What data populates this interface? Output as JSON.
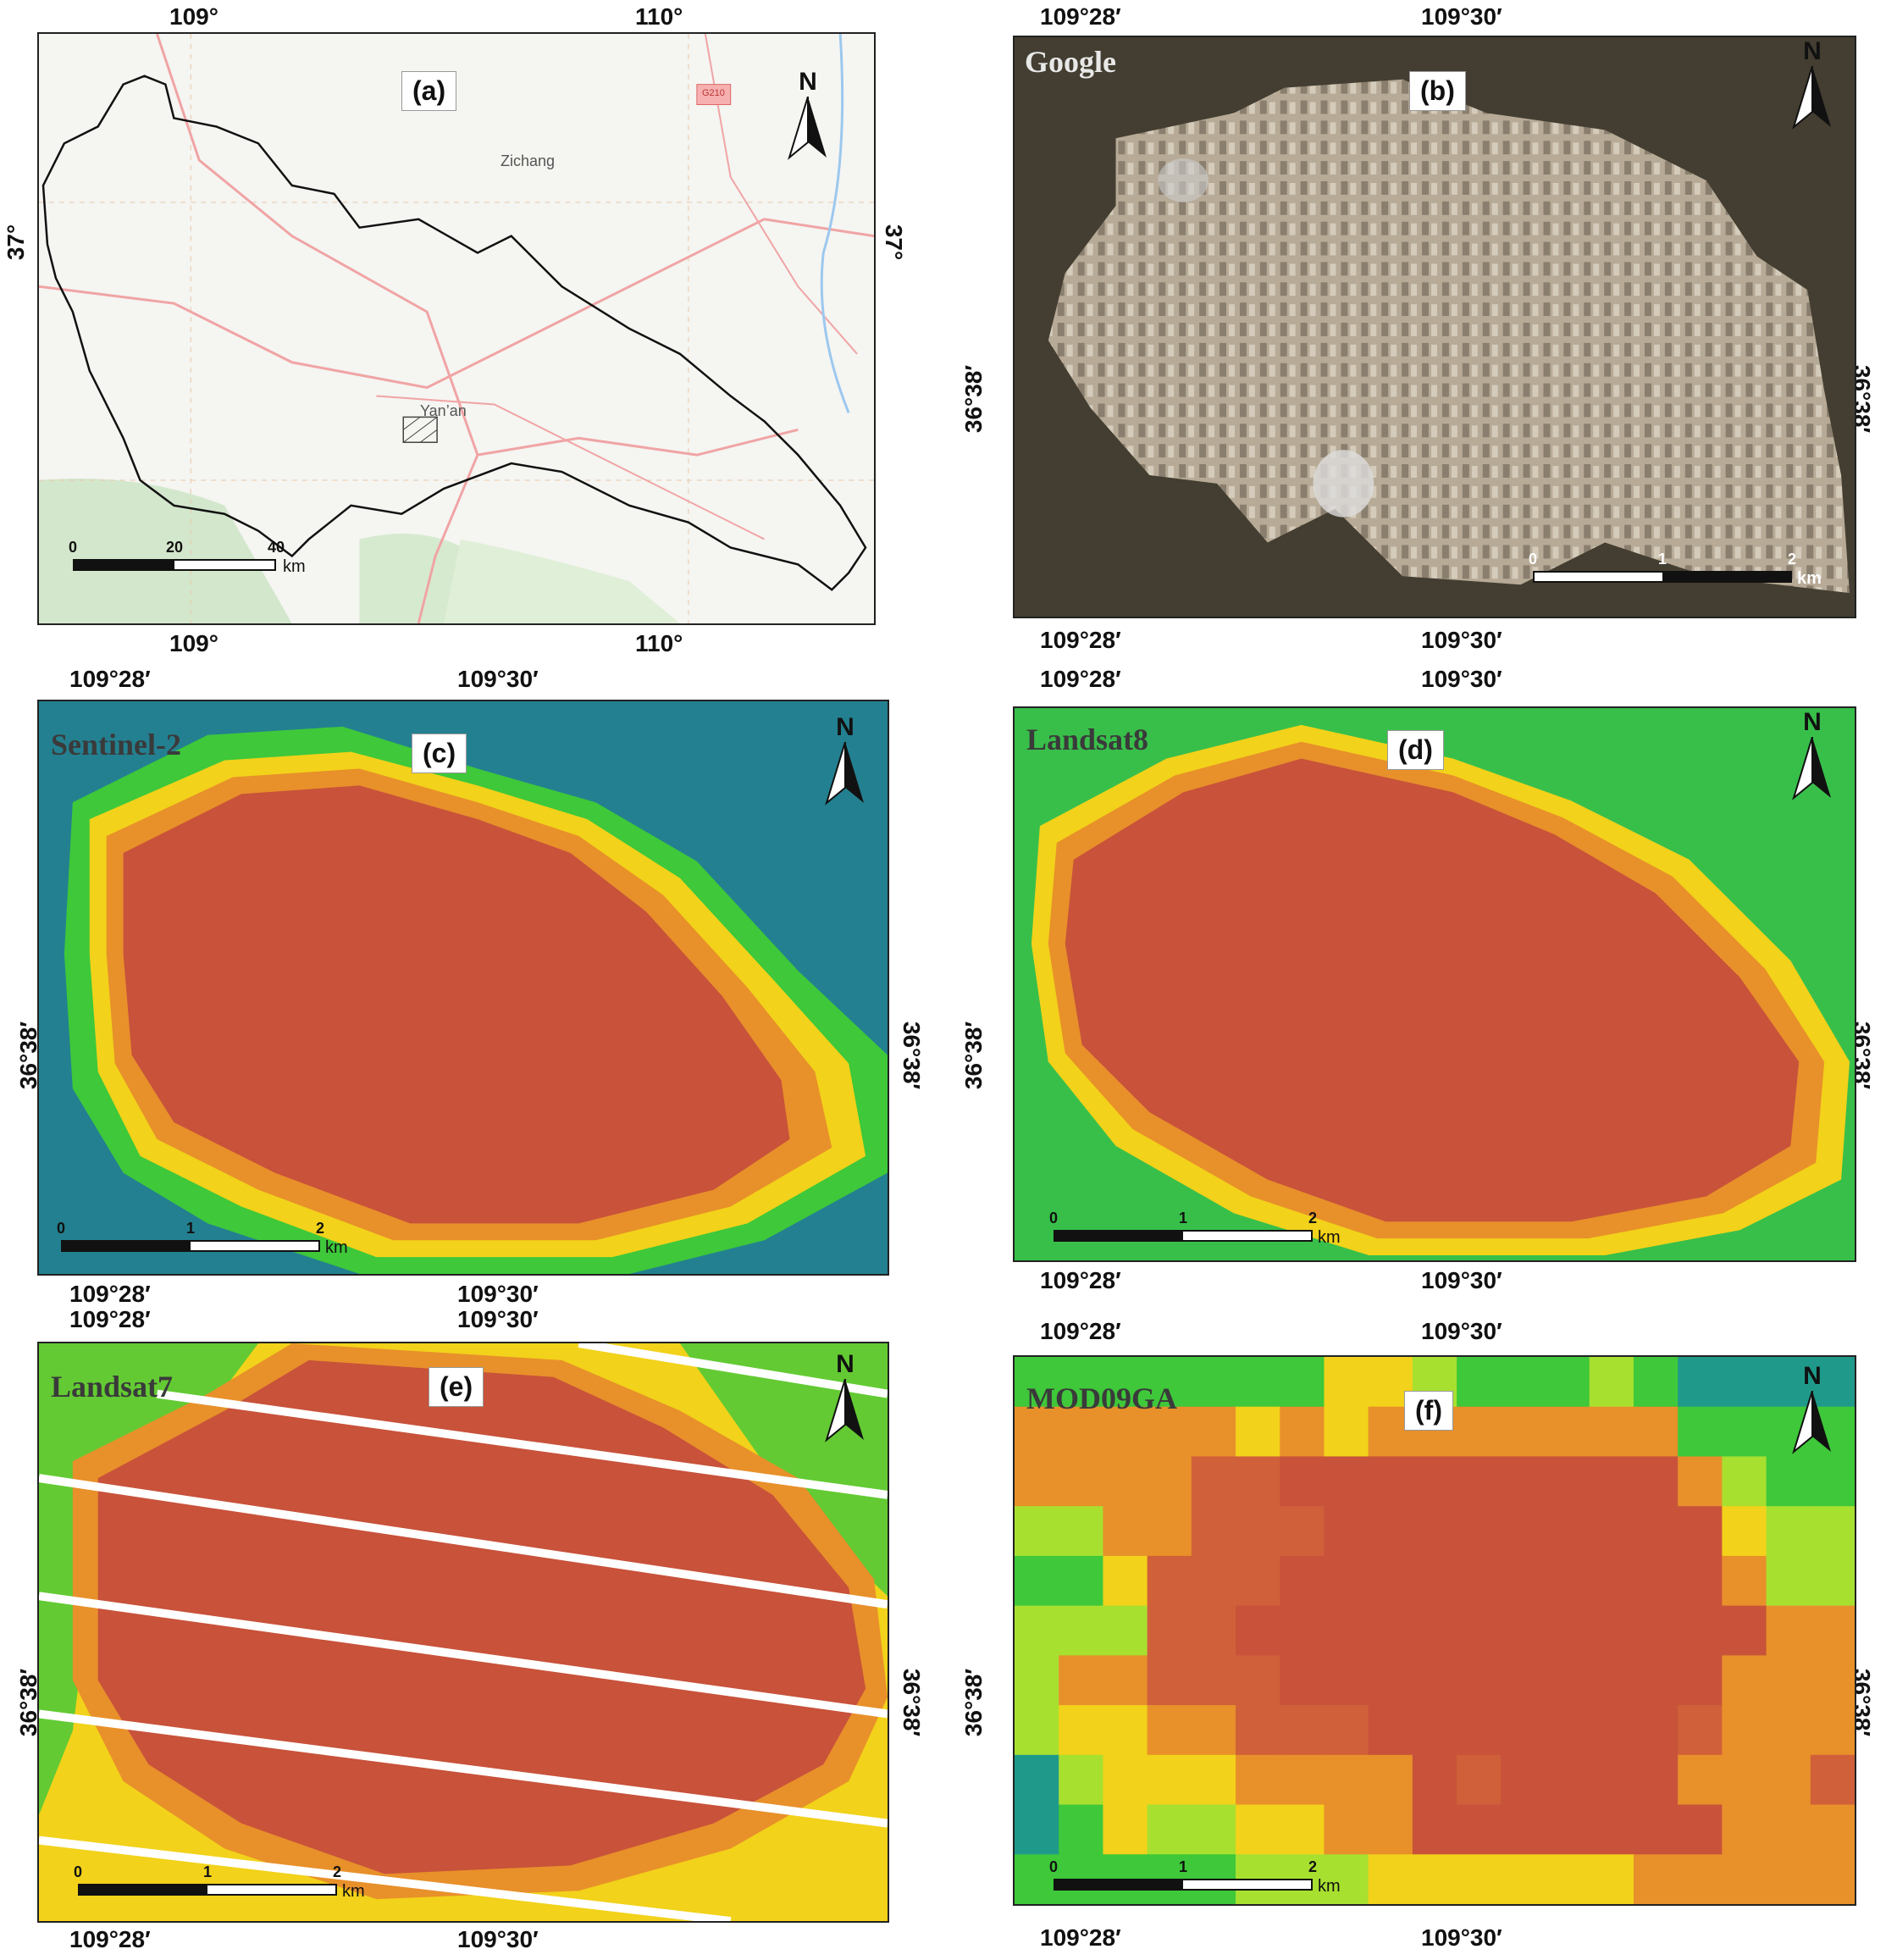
{
  "panels": {
    "a": {
      "label": "(a)",
      "top_lon": [
        "109°",
        "110°"
      ],
      "bottom_lon": [
        "109°",
        "110°"
      ],
      "left_lat": "37°",
      "right_lat": "37°",
      "places": {
        "zichang": "Zichang",
        "yanan": "Yan’an",
        "road": "G210"
      },
      "scale": {
        "ticks": [
          "0",
          "20",
          "40"
        ],
        "unit": "km"
      },
      "north": "N"
    },
    "b": {
      "label": "(b)",
      "source": "Google",
      "top_lon": [
        "109°28′",
        "109°30′"
      ],
      "bottom_lon": [
        "109°28′",
        "109°30′"
      ],
      "lat": "36°38′",
      "scale": {
        "ticks": [
          "0",
          "1",
          "2"
        ],
        "unit": "km"
      },
      "north": "N"
    },
    "c": {
      "label": "(c)",
      "source": "Sentinel-2",
      "top_lon": [
        "109°28′",
        "109°30′"
      ],
      "bottom_lon": [
        "109°28′",
        "109°30′"
      ],
      "lat": "36°38′",
      "scale": {
        "ticks": [
          "0",
          "1",
          "2"
        ],
        "unit": "km"
      },
      "north": "N"
    },
    "d": {
      "label": "(d)",
      "source": "Landsat8",
      "top_lon": [
        "109°28′",
        "109°30′"
      ],
      "bottom_lon": [
        "109°28′",
        "109°30′"
      ],
      "lat": "36°38′",
      "scale": {
        "ticks": [
          "0",
          "1",
          "2"
        ],
        "unit": "km"
      },
      "north": "N"
    },
    "e": {
      "label": "(e)",
      "source": "Landsat7",
      "top_lon": [
        "109°28′",
        "109°30′"
      ],
      "bottom_lon": [
        "109°28′",
        "109°30′"
      ],
      "lat": "36°38′",
      "scale": {
        "ticks": [
          "0",
          "1",
          "2"
        ],
        "unit": "km"
      },
      "north": "N"
    },
    "f": {
      "label": "(f)",
      "source": "MOD09GA",
      "top_lon": [
        "109°28′",
        "109°30′"
      ],
      "bottom_lon": [
        "109°28′",
        "109°30′"
      ],
      "lat": "36°38′",
      "scale": {
        "ticks": [
          "0",
          "1",
          "2"
        ],
        "unit": "km"
      },
      "north": "N"
    }
  },
  "colors": {
    "urban": "#c8523a",
    "orange": "#e8902a",
    "yellow": "#f2d21a",
    "green": "#3ec83a",
    "teal": "#1f9a8a",
    "blue": "#2a5a9a",
    "satellite_dark": "#4a4236",
    "satellite_city": "#b7aa96"
  }
}
